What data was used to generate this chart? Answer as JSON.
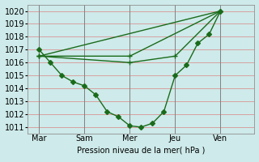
{
  "xlabel": "Pression niveau de la mer( hPa )",
  "bg_color": "#ceeaea",
  "grid_h_color": "#d8a0a0",
  "grid_v_color": "#b0b0b0",
  "day_v_color": "#808080",
  "line_color": "#1a6b1a",
  "linewidth": 1.0,
  "markersize": 3,
  "ylim": [
    1010.5,
    1020.5
  ],
  "yticks": [
    1011,
    1012,
    1013,
    1014,
    1015,
    1016,
    1017,
    1018,
    1019,
    1020
  ],
  "xlim": [
    0,
    20
  ],
  "day_labels": [
    "Mar",
    "Sam",
    "Mer",
    "Jeu",
    "Ven"
  ],
  "day_positions": [
    1,
    5,
    9,
    13,
    17
  ],
  "forecast_lines": [
    {
      "x": [
        1,
        17
      ],
      "y": [
        1016.5,
        1020.0
      ]
    },
    {
      "x": [
        1,
        9,
        17
      ],
      "y": [
        1016.5,
        1016.5,
        1020.0
      ]
    },
    {
      "x": [
        1,
        9,
        13,
        17
      ],
      "y": [
        1016.5,
        1016.0,
        1016.5,
        1020.0
      ]
    }
  ],
  "detail_x": [
    1,
    2,
    3,
    4,
    5,
    6,
    7,
    8,
    9,
    10,
    11,
    12,
    13,
    14,
    15,
    16,
    17
  ],
  "detail_y": [
    1017.0,
    1016.0,
    1015.0,
    1014.5,
    1014.2,
    1013.5,
    1012.2,
    1011.8,
    1011.1,
    1011.0,
    1011.3,
    1012.2,
    1015.0,
    1015.8,
    1017.5,
    1018.2,
    1020.0
  ],
  "xlabel_fontsize": 7,
  "tick_fontsize": 7
}
